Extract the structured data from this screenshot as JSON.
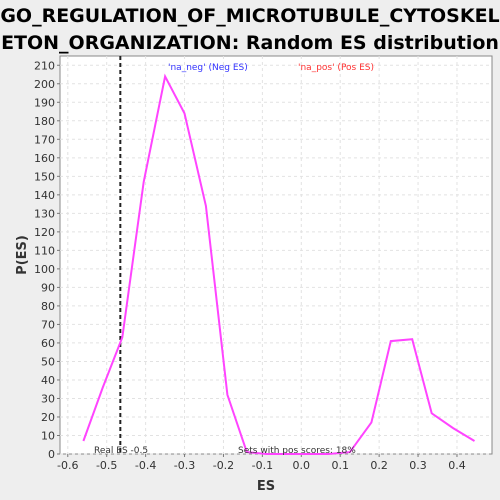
{
  "title_line1": "GO_REGULATION_OF_MICROTUBULE_CYTOSKEL",
  "title_line2": "ETON_ORGANIZATION: Random ES distribution",
  "chart_data": {
    "type": "line",
    "xlabel": "ES",
    "ylabel": "P(ES)",
    "xlim": [
      -0.62,
      0.49
    ],
    "ylim": [
      0,
      215
    ],
    "xticks": [
      -0.6,
      -0.5,
      -0.4,
      -0.3,
      -0.2,
      -0.1,
      0.0,
      0.1,
      0.2,
      0.3,
      0.4
    ],
    "xtick_labels": [
      "-0.6",
      "-0.5",
      "-0.4",
      "-0.3",
      "-0.2",
      "-0.1",
      "0.0",
      "0.1",
      "0.2",
      "0.3",
      "0.4"
    ],
    "yticks": [
      0,
      10,
      20,
      30,
      40,
      50,
      60,
      70,
      80,
      90,
      100,
      110,
      120,
      130,
      140,
      150,
      160,
      170,
      180,
      190,
      200,
      210
    ],
    "ytick_labels": [
      "0",
      "10",
      "20",
      "30",
      "40",
      "50",
      "60",
      "70",
      "80",
      "90",
      "100",
      "110",
      "120",
      "130",
      "140",
      "150",
      "160",
      "170",
      "180",
      "190",
      "200",
      "210"
    ],
    "grid": true,
    "series": [
      {
        "color": "#ff44ff",
        "x": [
          -0.56,
          -0.51,
          -0.46,
          -0.405,
          -0.35,
          -0.3,
          -0.245,
          -0.19,
          -0.14,
          -0.09,
          -0.035,
          0.02,
          0.07,
          0.125,
          0.18,
          0.23,
          0.285,
          0.335,
          0.39,
          0.445
        ],
        "y": [
          7,
          36,
          63,
          147,
          204,
          184,
          134,
          32,
          1,
          0,
          0,
          0,
          0,
          1,
          17,
          61,
          62,
          22,
          14,
          7
        ]
      }
    ],
    "real_es": -0.465,
    "legend": [
      {
        "label": "'na_neg' (Neg ES)",
        "color": "#3333ff"
      },
      {
        "label": "'na_pos' (Pos ES)",
        "color": "#ff3333"
      }
    ],
    "legend_position": "top",
    "annotations": {
      "real_es_text": "Real ES -0.5",
      "pos_scores_text": "Sets with pos scores: 18%"
    }
  }
}
